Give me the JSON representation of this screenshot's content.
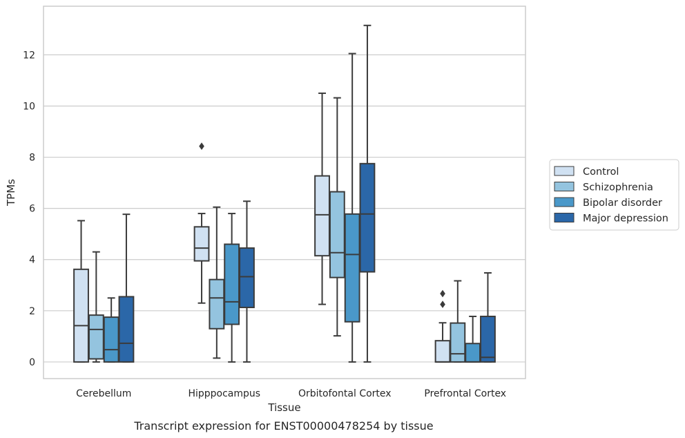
{
  "chart_data": {
    "type": "box",
    "xlabel": "Tissue",
    "ylabel": "TPMs",
    "caption": "Transcript expression for ENST00000478254 by tissue",
    "ylim": [
      -0.65,
      13.9
    ],
    "yticks": [
      0,
      2,
      4,
      6,
      8,
      10,
      12
    ],
    "grid": true,
    "legend_position": "right",
    "categories": [
      "Cerebellum",
      "Hipppocampus",
      "Orbitofontal Cortex",
      "Prefrontal Cortex"
    ],
    "series": [
      {
        "name": "Control",
        "color": "#d0e1f2",
        "boxes": [
          {
            "whislo": 0.0,
            "q1": 0.0,
            "med": 1.42,
            "q3": 3.62,
            "whishi": 5.52,
            "fliers": []
          },
          {
            "whislo": 2.3,
            "q1": 3.95,
            "med": 4.45,
            "q3": 5.28,
            "whishi": 5.8,
            "fliers": [
              8.43
            ]
          },
          {
            "whislo": 2.25,
            "q1": 4.15,
            "med": 5.75,
            "q3": 7.27,
            "whishi": 10.5,
            "fliers": []
          },
          {
            "whislo": 0.0,
            "q1": 0.0,
            "med": 0.0,
            "q3": 0.83,
            "whishi": 1.53,
            "fliers": [
              2.25,
              2.67
            ]
          }
        ]
      },
      {
        "name": "Schizophrenia",
        "color": "#94c4df",
        "boxes": [
          {
            "whislo": 0.0,
            "q1": 0.12,
            "med": 1.27,
            "q3": 1.83,
            "whishi": 4.3,
            "fliers": []
          },
          {
            "whislo": 0.15,
            "q1": 1.3,
            "med": 2.5,
            "q3": 3.22,
            "whishi": 6.05,
            "fliers": []
          },
          {
            "whislo": 1.02,
            "q1": 3.3,
            "med": 4.27,
            "q3": 6.65,
            "whishi": 10.32,
            "fliers": []
          },
          {
            "whislo": 0.0,
            "q1": 0.0,
            "med": 0.32,
            "q3": 1.52,
            "whishi": 3.17,
            "fliers": []
          }
        ]
      },
      {
        "name": "Bipolar disorder",
        "color": "#4a98c9",
        "boxes": [
          {
            "whislo": 0.0,
            "q1": 0.0,
            "med": 0.48,
            "q3": 1.75,
            "whishi": 2.5,
            "fliers": []
          },
          {
            "whislo": 0.0,
            "q1": 1.47,
            "med": 2.35,
            "q3": 4.6,
            "whishi": 5.8,
            "fliers": []
          },
          {
            "whislo": 0.0,
            "q1": 1.57,
            "med": 4.2,
            "q3": 5.78,
            "whishi": 12.05,
            "fliers": []
          },
          {
            "whislo": 0.0,
            "q1": 0.0,
            "med": 0.0,
            "q3": 0.72,
            "whishi": 1.78,
            "fliers": []
          }
        ]
      },
      {
        "name": "Major depression",
        "color": "#2b67a8",
        "boxes": [
          {
            "whislo": 0.0,
            "q1": 0.0,
            "med": 0.73,
            "q3": 2.55,
            "whishi": 5.77,
            "fliers": []
          },
          {
            "whislo": 0.0,
            "q1": 2.13,
            "med": 3.33,
            "q3": 4.45,
            "whishi": 6.28,
            "fliers": []
          },
          {
            "whislo": 0.0,
            "q1": 3.52,
            "med": 5.78,
            "q3": 7.75,
            "whishi": 13.15,
            "fliers": []
          },
          {
            "whislo": 0.0,
            "q1": 0.0,
            "med": 0.18,
            "q3": 1.78,
            "whishi": 3.48,
            "fliers": []
          }
        ]
      }
    ]
  }
}
